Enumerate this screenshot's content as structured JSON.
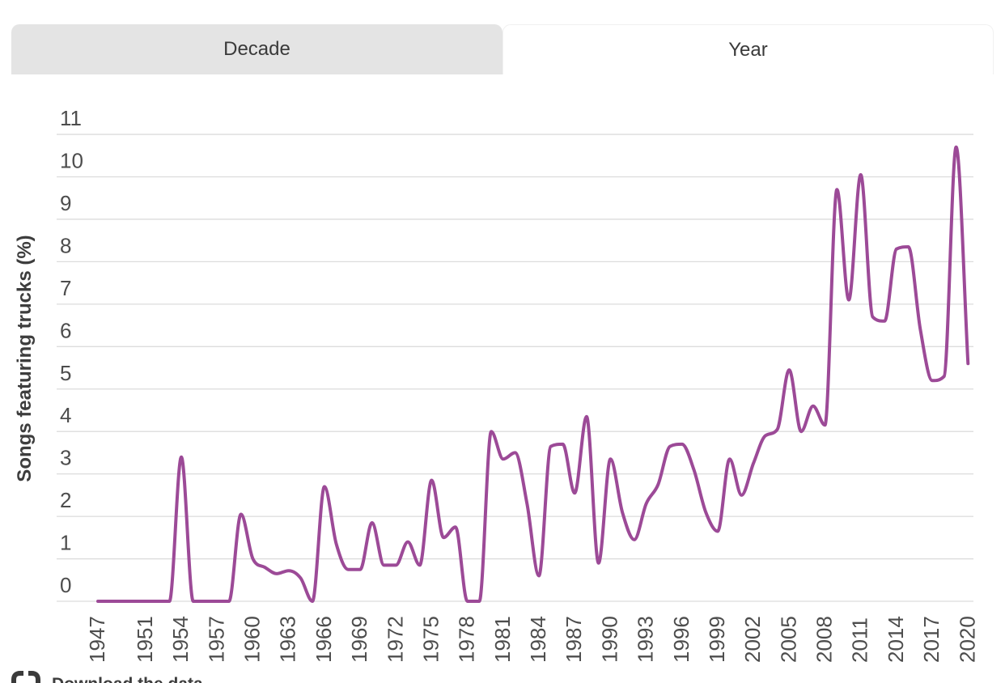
{
  "tabs": [
    {
      "label": "Decade",
      "active": false
    },
    {
      "label": "Year",
      "active": true
    }
  ],
  "chart_data": {
    "type": "line",
    "title": "",
    "xlabel": "",
    "ylabel": "Songs featuring trucks (%)",
    "ylim": [
      0,
      11
    ],
    "grid": "horizontal",
    "legend": "none",
    "y_ticks": [
      0,
      1,
      2,
      3,
      4,
      5,
      6,
      7,
      8,
      9,
      10,
      11
    ],
    "x_tick_labels": [
      "1947",
      "1951",
      "1954",
      "1957",
      "1960",
      "1963",
      "1966",
      "1969",
      "1972",
      "1975",
      "1978",
      "1981",
      "1984",
      "1987",
      "1990",
      "1993",
      "1996",
      "1999",
      "2002",
      "2005",
      "2008",
      "2011",
      "2014",
      "2017",
      "2020"
    ],
    "x_range": [
      1947,
      2020
    ],
    "x": [
      1947,
      1948,
      1949,
      1950,
      1951,
      1952,
      1953,
      1954,
      1955,
      1956,
      1957,
      1958,
      1959,
      1960,
      1961,
      1962,
      1963,
      1964,
      1965,
      1966,
      1967,
      1968,
      1969,
      1970,
      1971,
      1972,
      1973,
      1974,
      1975,
      1976,
      1977,
      1978,
      1979,
      1980,
      1981,
      1982,
      1983,
      1984,
      1985,
      1986,
      1987,
      1988,
      1989,
      1990,
      1991,
      1992,
      1993,
      1994,
      1995,
      1996,
      1997,
      1998,
      1999,
      2000,
      2001,
      2002,
      2003,
      2004,
      2005,
      2006,
      2007,
      2008,
      2009,
      2010,
      2011,
      2012,
      2013,
      2014,
      2015,
      2016,
      2017,
      2018,
      2019,
      2020
    ],
    "series": [
      {
        "name": "Songs featuring trucks (%)",
        "color": "#9c4a97",
        "values": [
          0,
          0,
          0,
          0,
          0,
          0,
          0,
          3.4,
          0,
          0,
          0,
          0,
          2.05,
          1.0,
          0.8,
          0.65,
          0.72,
          0.55,
          0,
          2.7,
          1.35,
          0.75,
          0.75,
          1.85,
          0.85,
          0.85,
          1.4,
          0.85,
          2.85,
          1.5,
          1.75,
          0,
          0,
          4.0,
          3.35,
          3.5,
          2.3,
          0.6,
          3.65,
          3.7,
          2.55,
          4.35,
          0.9,
          3.35,
          2.1,
          1.45,
          2.3,
          2.75,
          3.65,
          3.7,
          3.1,
          2.1,
          1.65,
          3.35,
          2.5,
          3.25,
          3.9,
          4.05,
          5.45,
          4.0,
          4.6,
          4.15,
          9.7,
          7.1,
          10.05,
          6.7,
          6.6,
          8.3,
          8.35,
          6.4,
          5.2,
          5.3,
          10.7,
          5.6
        ]
      }
    ]
  },
  "footer": {
    "label": "Download the data"
  },
  "colors": {
    "line": "#9c4a97",
    "gridline": "#dcdcdc",
    "tick_text": "#4d4d4d",
    "axis_title_text": "#3d3d3d",
    "tab_inactive_bg": "#e4e4e4",
    "tab_text": "#3a3a3a",
    "footer_icon": "#3b3b3b"
  }
}
